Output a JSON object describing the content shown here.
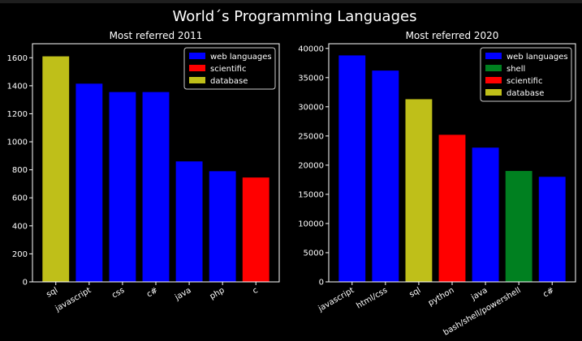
{
  "figure": {
    "suptitle": "World´s Programming Languages",
    "background": "#000000",
    "text_color": "#ffffff"
  },
  "chart_data": [
    {
      "type": "bar",
      "title": "Most referred 2011",
      "xlabel": "",
      "ylabel": "",
      "categories": [
        "sql",
        "javascript",
        "css",
        "c#",
        "java",
        "php",
        "c"
      ],
      "values": [
        1610,
        1415,
        1355,
        1355,
        860,
        790,
        745
      ],
      "bar_groups": [
        "database",
        "web languages",
        "web languages",
        "web languages",
        "web languages",
        "web languages",
        "scientific"
      ],
      "ylim": [
        0,
        1700
      ],
      "yticks": [
        0,
        200,
        400,
        600,
        800,
        1000,
        1200,
        1400,
        1600
      ],
      "legend": [
        {
          "label": "web languages",
          "color": "#0000ff"
        },
        {
          "label": "scientific",
          "color": "#ff0000"
        },
        {
          "label": "database",
          "color": "#bfbf19"
        }
      ],
      "legend_position": "top-right",
      "grid": false
    },
    {
      "type": "bar",
      "title": "Most referred 2020",
      "xlabel": "",
      "ylabel": "",
      "categories": [
        "javascript",
        "html/css",
        "sql",
        "python",
        "java",
        "bash/shell/powershell",
        "c#"
      ],
      "values": [
        38800,
        36200,
        31300,
        25200,
        23000,
        19000,
        18000
      ],
      "bar_groups": [
        "web languages",
        "web languages",
        "database",
        "scientific",
        "web languages",
        "shell",
        "web languages"
      ],
      "ylim": [
        0,
        40800
      ],
      "yticks": [
        0,
        5000,
        10000,
        15000,
        20000,
        25000,
        30000,
        35000,
        40000
      ],
      "legend": [
        {
          "label": "web languages",
          "color": "#0000ff"
        },
        {
          "label": "shell",
          "color": "#008020"
        },
        {
          "label": "scientific",
          "color": "#ff0000"
        },
        {
          "label": "database",
          "color": "#bfbf19"
        }
      ],
      "legend_position": "top-right",
      "grid": false
    }
  ]
}
